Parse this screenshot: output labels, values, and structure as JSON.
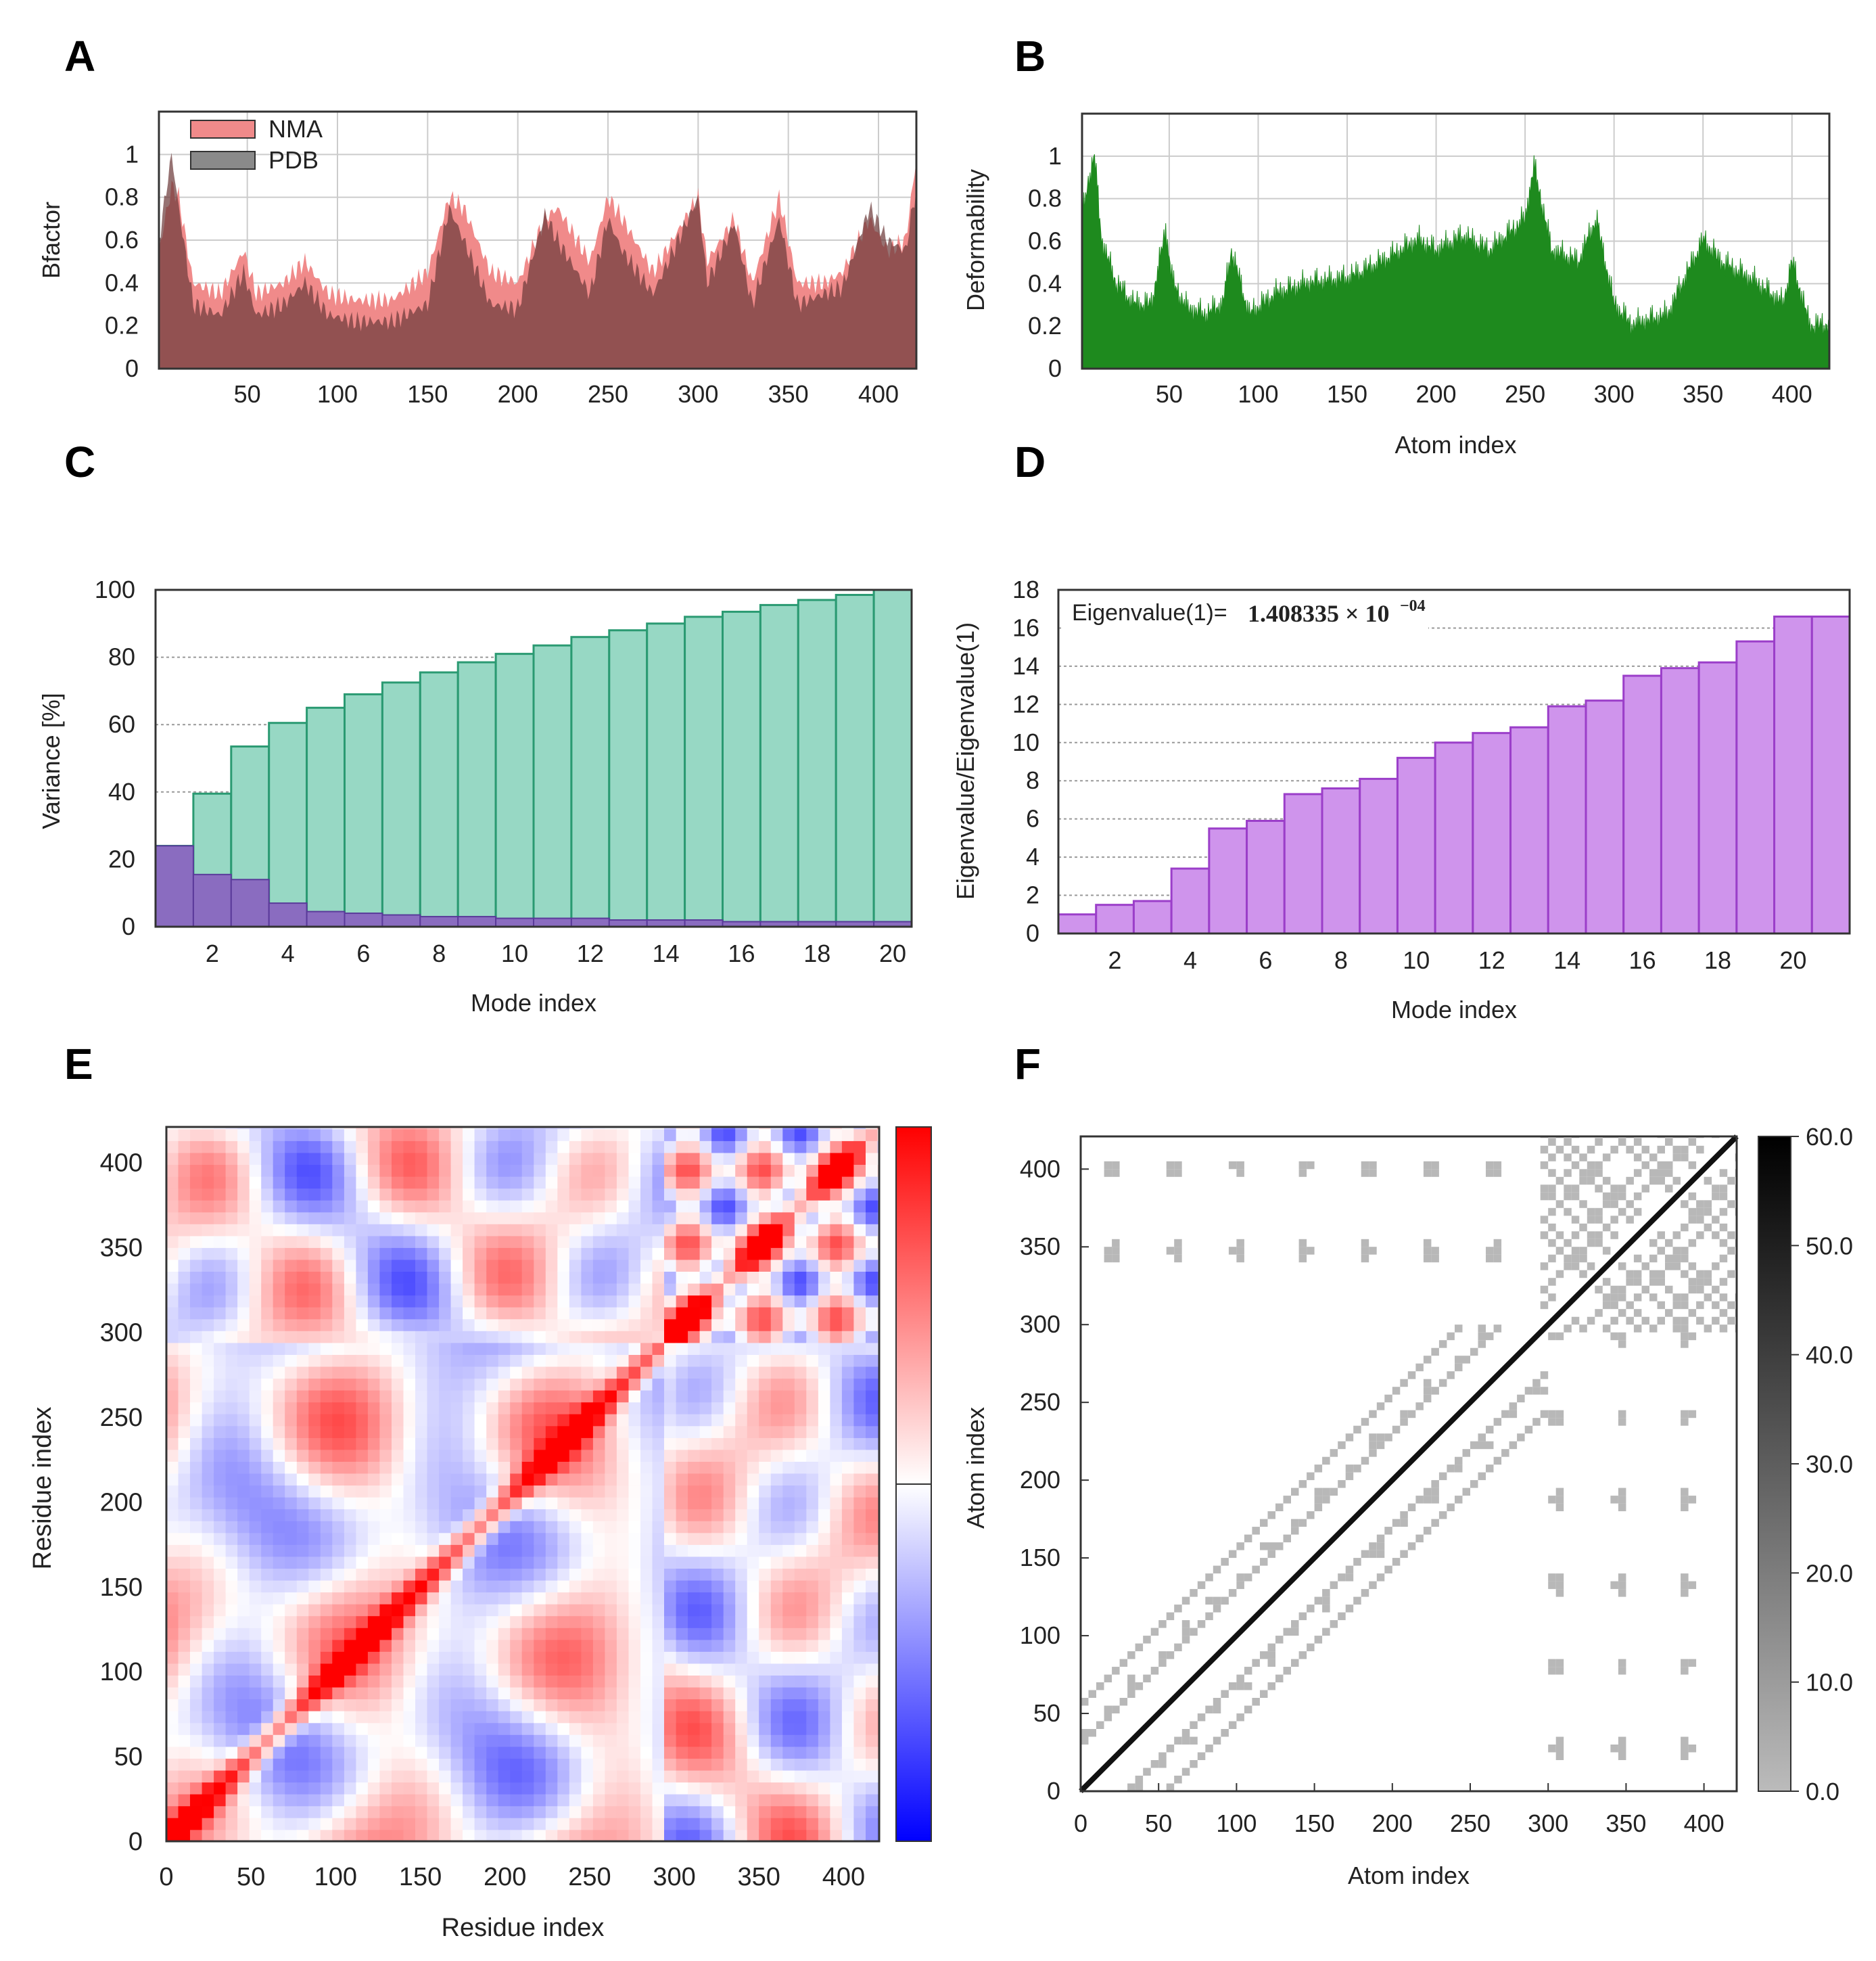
{
  "panels": [
    "A",
    "B",
    "C",
    "D",
    "E",
    "F"
  ],
  "colors": {
    "nma": "#f08a8a",
    "pdb": "#6e3c3c",
    "deform": "#1e8a1e",
    "variance_cum": "#97d8c4",
    "variance_cum_edge": "#2a9a72",
    "variance_ind": "#8a6cc0",
    "eigen": "#cf94ec",
    "eigen_edge": "#9b3ec9",
    "grid": "#cccccc"
  },
  "chart_data": [
    {
      "panel": "A",
      "type": "area",
      "xlabel": "",
      "ylabel": "Bfactor",
      "xlim": [
        1,
        421
      ],
      "ylim": [
        0,
        1.2
      ],
      "xticks": [
        50,
        100,
        150,
        200,
        250,
        300,
        350,
        400
      ],
      "yticks": [
        0,
        0.2,
        0.4,
        0.6,
        0.8,
        1
      ],
      "ytick_labels": [
        "0",
        "0.2",
        "0.4",
        "0.6",
        "0.8",
        "1"
      ],
      "legend": [
        "NMA",
        "PDB"
      ],
      "legend_position": "top-left",
      "series": [
        {
          "name": "NMA",
          "x": [
            1,
            8,
            12,
            20,
            35,
            48,
            55,
            70,
            82,
            95,
            110,
            130,
            150,
            162,
            170,
            185,
            200,
            215,
            222,
            240,
            250,
            258,
            275,
            300,
            305,
            320,
            330,
            345,
            355,
            370,
            380,
            395,
            405,
            415,
            421
          ],
          "values": [
            0.55,
            0.85,
            0.8,
            0.4,
            0.35,
            0.55,
            0.35,
            0.4,
            0.5,
            0.35,
            0.32,
            0.32,
            0.45,
            0.8,
            0.75,
            0.45,
            0.4,
            0.7,
            0.75,
            0.5,
            0.8,
            0.7,
            0.45,
            0.8,
            0.5,
            0.7,
            0.4,
            0.8,
            0.4,
            0.4,
            0.45,
            0.7,
            0.55,
            0.6,
            0.98
          ]
        },
        {
          "name": "PDB",
          "x": [
            1,
            8,
            12,
            20,
            35,
            48,
            55,
            70,
            82,
            95,
            110,
            130,
            150,
            162,
            170,
            185,
            200,
            215,
            222,
            240,
            250,
            258,
            275,
            300,
            305,
            320,
            330,
            345,
            355,
            370,
            380,
            395,
            405,
            415,
            421
          ],
          "values": [
            0.6,
            1.0,
            0.75,
            0.3,
            0.25,
            0.45,
            0.25,
            0.3,
            0.4,
            0.25,
            0.22,
            0.22,
            0.3,
            0.75,
            0.6,
            0.3,
            0.28,
            0.72,
            0.6,
            0.35,
            0.7,
            0.55,
            0.35,
            0.8,
            0.4,
            0.68,
            0.3,
            0.7,
            0.3,
            0.35,
            0.38,
            0.75,
            0.6,
            0.55,
            0.85
          ]
        }
      ]
    },
    {
      "panel": "B",
      "type": "bar",
      "xlabel": "Atom index",
      "ylabel": "Deformability",
      "xlim": [
        1,
        421
      ],
      "ylim": [
        0,
        1.2
      ],
      "xticks": [
        50,
        100,
        150,
        200,
        250,
        300,
        350,
        400
      ],
      "yticks": [
        0,
        0.2,
        0.4,
        0.6,
        0.8,
        1
      ],
      "ytick_labels": [
        "0",
        "0.2",
        "0.4",
        "0.6",
        "0.8",
        "1"
      ],
      "x": [
        1,
        5,
        8,
        12,
        20,
        30,
        40,
        48,
        52,
        60,
        70,
        80,
        85,
        95,
        110,
        130,
        150,
        170,
        190,
        200,
        215,
        230,
        250,
        255,
        265,
        280,
        290,
        300,
        310,
        330,
        350,
        360,
        380,
        395,
        400,
        410,
        421
      ],
      "values": [
        0.7,
        0.9,
        1.0,
        0.6,
        0.4,
        0.3,
        0.3,
        0.65,
        0.4,
        0.28,
        0.25,
        0.3,
        0.55,
        0.25,
        0.35,
        0.4,
        0.42,
        0.5,
        0.6,
        0.55,
        0.62,
        0.55,
        0.7,
        0.95,
        0.55,
        0.5,
        0.7,
        0.3,
        0.2,
        0.25,
        0.6,
        0.5,
        0.4,
        0.3,
        0.5,
        0.2,
        0.2
      ]
    },
    {
      "panel": "C",
      "type": "bar",
      "xlabel": "Mode index",
      "ylabel": "Variance [%]",
      "categories": [
        1,
        2,
        3,
        4,
        5,
        6,
        7,
        8,
        9,
        10,
        11,
        12,
        13,
        14,
        15,
        16,
        17,
        18,
        19,
        20
      ],
      "xticks": [
        2,
        4,
        6,
        8,
        10,
        12,
        14,
        16,
        18,
        20
      ],
      "ylim": [
        0,
        100
      ],
      "yticks": [
        0,
        20,
        40,
        60,
        80,
        100
      ],
      "series": [
        {
          "name": "cumulative",
          "values": [
            24,
            39.5,
            53.5,
            60.5,
            65,
            69,
            72.5,
            75.5,
            78.5,
            81,
            83.5,
            86,
            88,
            90,
            92,
            93.5,
            95.5,
            97,
            98.5,
            100
          ]
        },
        {
          "name": "individual",
          "values": [
            24,
            15.5,
            14,
            7,
            4.5,
            4,
            3.5,
            3,
            3,
            2.5,
            2.5,
            2.5,
            2,
            2,
            2,
            1.5,
            1.5,
            1.5,
            1.5,
            1.5
          ]
        }
      ]
    },
    {
      "panel": "D",
      "type": "bar",
      "xlabel": "Mode index",
      "ylabel": "Eigenvalue/Eigenvalue(1)",
      "annotation_label": "Eigenvalue(1)=",
      "annotation_value": "1.408335 × 10",
      "annotation_exp": "−04",
      "categories": [
        1,
        2,
        3,
        4,
        5,
        6,
        7,
        8,
        9,
        10,
        11,
        12,
        13,
        14,
        15,
        16,
        17,
        18,
        19,
        20,
        21
      ],
      "xticks": [
        2,
        4,
        6,
        8,
        10,
        12,
        14,
        16,
        18,
        20
      ],
      "ylim": [
        0,
        18
      ],
      "yticks": [
        0,
        2,
        4,
        6,
        8,
        10,
        12,
        14,
        16,
        18
      ],
      "values": [
        1,
        1.5,
        1.7,
        3.4,
        5.5,
        5.9,
        7.3,
        7.6,
        8.1,
        9.2,
        10,
        10.5,
        10.8,
        11.9,
        12.2,
        13.5,
        13.9,
        14.2,
        15.3,
        16.6,
        16.6
      ]
    },
    {
      "panel": "E",
      "type": "heatmap",
      "xlabel": "Residue index",
      "ylabel": "Residue index",
      "xlim": [
        0,
        421
      ],
      "ylim": [
        0,
        421
      ],
      "xticks": [
        0,
        50,
        100,
        150,
        200,
        250,
        300,
        350,
        400
      ],
      "yticks": [
        0,
        50,
        100,
        150,
        200,
        250,
        300,
        350,
        400
      ],
      "colorscale": [
        "#0000ff",
        "#ffffff",
        "#ff0000"
      ],
      "domain_boundary": 295
    },
    {
      "panel": "F",
      "type": "heatmap",
      "xlabel": "Atom index",
      "ylabel": "Atom index",
      "xlim": [
        0,
        421
      ],
      "ylim": [
        0,
        421
      ],
      "xticks": [
        0,
        50,
        100,
        150,
        200,
        250,
        300,
        350,
        400
      ],
      "yticks": [
        0,
        50,
        100,
        150,
        200,
        250,
        300,
        350,
        400
      ],
      "colorbar_ticks": [
        "0.0",
        "10.0",
        "20.0",
        "30.0",
        "40.0",
        "50.0",
        "60.0"
      ],
      "colorscale": [
        "#bbbbbb",
        "#000000"
      ]
    }
  ]
}
